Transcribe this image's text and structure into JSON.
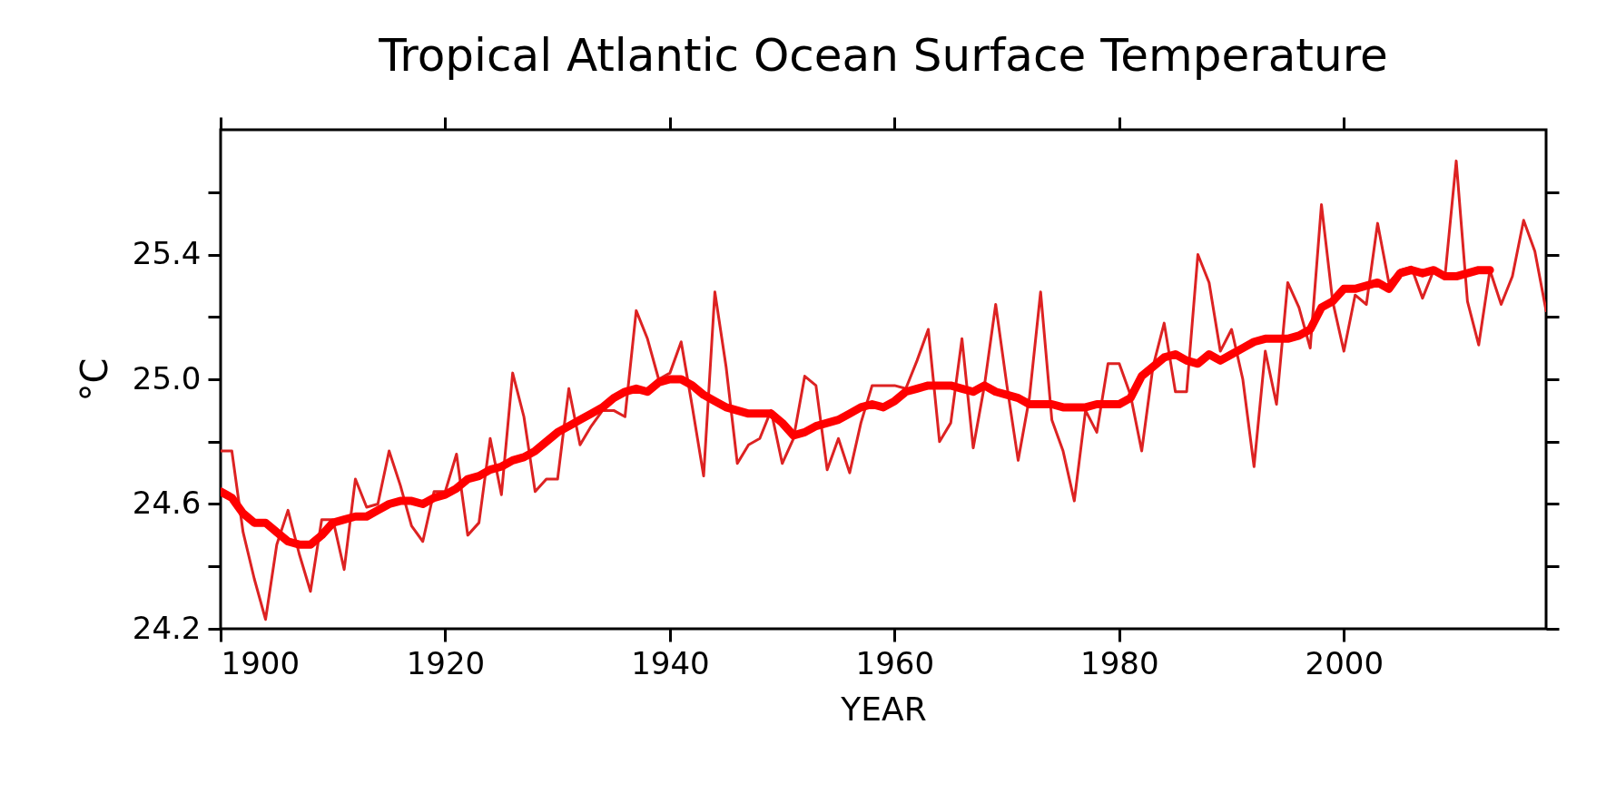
{
  "chart_data": {
    "type": "line",
    "title": "Tropical Atlantic Ocean Surface Temperature",
    "xlabel": "YEAR",
    "ylabel": "°C",
    "xlim": [
      1900,
      2018
    ],
    "ylim": [
      24.2,
      25.8
    ],
    "xticks": [
      1900,
      1920,
      1940,
      1960,
      1980,
      2000
    ],
    "yticks": [
      24.2,
      {
        "value": 24.4,
        "label": null
      },
      24.6,
      {
        "value": 24.8,
        "label": null
      },
      {
        "value": 25,
        "label": "25.0"
      },
      {
        "value": 25.2,
        "label": null
      },
      25.4,
      {
        "value": 25.6,
        "label": null
      }
    ],
    "grid": false,
    "line_style": "solid",
    "marker": "none",
    "series": [
      {
        "color": "#dd2222",
        "x": [
          1900,
          1901,
          1902,
          1903,
          1904,
          1905,
          1906,
          1907,
          1908,
          1909,
          1910,
          1911,
          1912,
          1913,
          1914,
          1915,
          1916,
          1917,
          1918,
          1919,
          1920,
          1921,
          1922,
          1923,
          1924,
          1925,
          1926,
          1927,
          1928,
          1929,
          1930,
          1931,
          1932,
          1933,
          1934,
          1935,
          1936,
          1937,
          1938,
          1939,
          1940,
          1941,
          1942,
          1943,
          1944,
          1945,
          1946,
          1947,
          1948,
          1949,
          1950,
          1951,
          1952,
          1953,
          1954,
          1955,
          1956,
          1957,
          1958,
          1959,
          1960,
          1961,
          1962,
          1963,
          1964,
          1965,
          1966,
          1967,
          1968,
          1969,
          1970,
          1971,
          1972,
          1973,
          1974,
          1975,
          1976,
          1977,
          1978,
          1979,
          1980,
          1981,
          1982,
          1983,
          1984,
          1985,
          1986,
          1987,
          1988,
          1989,
          1990,
          1991,
          1992,
          1993,
          1994,
          1995,
          1996,
          1997,
          1998,
          1999,
          2000,
          2001,
          2002,
          2003,
          2004,
          2005,
          2006,
          2007,
          2008,
          2009,
          2010,
          2011,
          2012,
          2013,
          2014,
          2015,
          2016,
          2017,
          2018
        ],
        "values": [
          24.77,
          24.77,
          24.51,
          24.36,
          24.23,
          24.47,
          24.58,
          24.44,
          24.32,
          24.55,
          24.55,
          24.39,
          24.68,
          24.59,
          24.6,
          24.77,
          24.66,
          24.53,
          24.48,
          24.64,
          24.64,
          24.76,
          24.5,
          24.54,
          24.81,
          24.63,
          25.02,
          24.88,
          24.64,
          24.68,
          24.68,
          24.97,
          24.79,
          24.85,
          24.9,
          24.9,
          24.88,
          25.22,
          25.13,
          25.0,
          25.02,
          25.12,
          24.91,
          24.69,
          25.28,
          25.04,
          24.73,
          24.79,
          24.81,
          24.9,
          24.73,
          24.81,
          25.01,
          24.98,
          24.71,
          24.81,
          24.7,
          24.86,
          24.98,
          24.98,
          24.98,
          24.97,
          25.06,
          25.16,
          24.8,
          24.86,
          25.13,
          24.78,
          24.98,
          25.24,
          24.98,
          24.74,
          24.94,
          25.28,
          24.87,
          24.77,
          24.61,
          24.9,
          24.83,
          25.05,
          25.05,
          24.95,
          24.77,
          25.04,
          25.18,
          24.96,
          24.96,
          25.4,
          25.31,
          25.09,
          25.16,
          25.0,
          24.72,
          25.09,
          24.92,
          25.31,
          25.23,
          25.1,
          25.56,
          25.25,
          25.09,
          25.27,
          25.24,
          25.5,
          25.31,
          25.35,
          25.36,
          25.26,
          25.35,
          25.33,
          25.7,
          25.25,
          25.11,
          25.35,
          25.24,
          25.33,
          25.51,
          25.41,
          25.22
        ]
      },
      {
        "color": "#ff0000",
        "x": [
          1900,
          1901,
          1902,
          1903,
          1904,
          1905,
          1906,
          1907,
          1908,
          1909,
          1910,
          1911,
          1912,
          1913,
          1914,
          1915,
          1916,
          1917,
          1918,
          1919,
          1920,
          1921,
          1922,
          1923,
          1924,
          1925,
          1926,
          1927,
          1928,
          1929,
          1930,
          1931,
          1932,
          1933,
          1934,
          1935,
          1936,
          1937,
          1938,
          1939,
          1940,
          1941,
          1942,
          1943,
          1944,
          1945,
          1946,
          1947,
          1948,
          1949,
          1950,
          1951,
          1952,
          1953,
          1954,
          1955,
          1956,
          1957,
          1958,
          1959,
          1960,
          1961,
          1962,
          1963,
          1964,
          1965,
          1966,
          1967,
          1968,
          1969,
          1970,
          1971,
          1972,
          1973,
          1974,
          1975,
          1976,
          1977,
          1978,
          1979,
          1980,
          1981,
          1982,
          1983,
          1984,
          1985,
          1986,
          1987,
          1988,
          1989,
          1990,
          1991,
          1992,
          1993,
          1994,
          1995,
          1996,
          1997,
          1998,
          1999,
          2000,
          2001,
          2002,
          2003,
          2004,
          2005,
          2006,
          2007,
          2008,
          2009,
          2010,
          2011,
          2012,
          2013
        ],
        "values": [
          24.64,
          24.62,
          24.57,
          24.54,
          24.54,
          24.51,
          24.48,
          24.47,
          24.47,
          24.5,
          24.54,
          24.55,
          24.56,
          24.56,
          24.58,
          24.6,
          24.61,
          24.61,
          24.6,
          24.62,
          24.63,
          24.65,
          24.68,
          24.69,
          24.71,
          24.72,
          24.74,
          24.75,
          24.77,
          24.8,
          24.83,
          24.85,
          24.87,
          24.89,
          24.91,
          24.94,
          24.96,
          24.97,
          24.96,
          24.99,
          25.0,
          25.0,
          24.98,
          24.95,
          24.93,
          24.91,
          24.9,
          24.89,
          24.89,
          24.89,
          24.86,
          24.82,
          24.83,
          24.85,
          24.86,
          24.87,
          24.89,
          24.91,
          24.92,
          24.91,
          24.93,
          24.96,
          24.97,
          24.98,
          24.98,
          24.98,
          24.97,
          24.96,
          24.98,
          24.96,
          24.95,
          24.94,
          24.92,
          24.92,
          24.92,
          24.91,
          24.91,
          24.91,
          24.92,
          24.92,
          24.92,
          24.94,
          25.01,
          25.04,
          25.07,
          25.08,
          25.06,
          25.05,
          25.08,
          25.06,
          25.08,
          25.1,
          25.12,
          25.13,
          25.13,
          25.13,
          25.14,
          25.16,
          25.23,
          25.25,
          25.29,
          25.29,
          25.3,
          25.31,
          25.29,
          25.34,
          25.35,
          25.34,
          25.35,
          25.33,
          25.33,
          25.34,
          25.35,
          25.35
        ]
      }
    ]
  }
}
